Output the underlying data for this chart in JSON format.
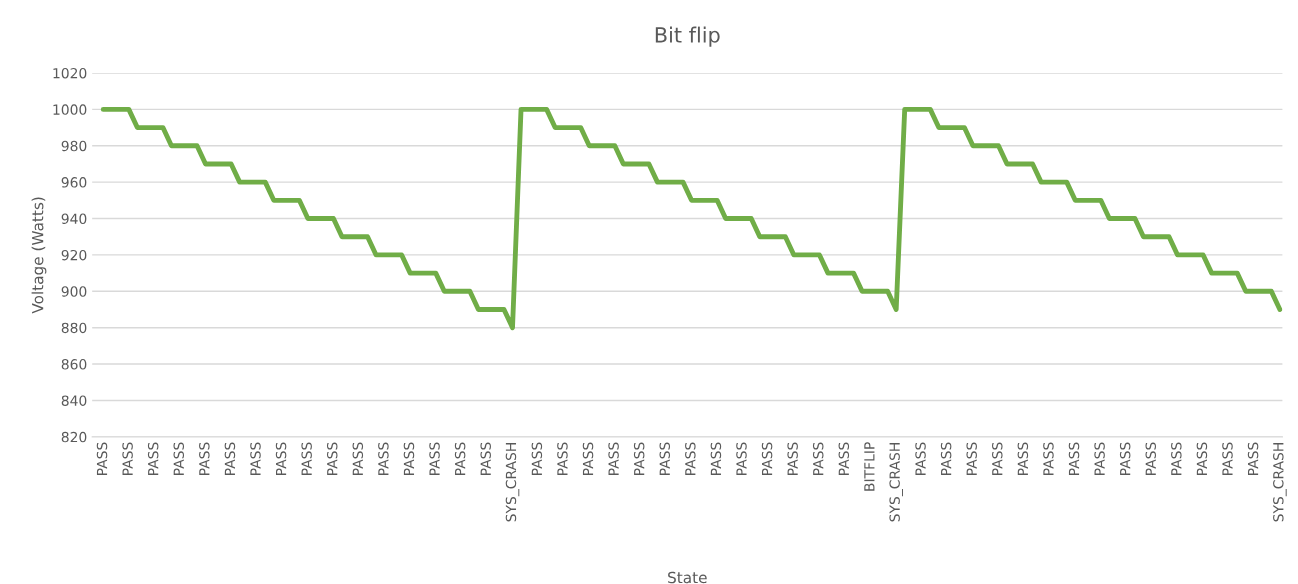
{
  "chart_data": {
    "type": "line",
    "title": "Bit flip",
    "xlabel": "State",
    "ylabel": "Voltage (Watts)",
    "categories": [
      "PASS",
      null,
      null,
      "PASS",
      null,
      null,
      "PASS",
      null,
      null,
      "PASS",
      null,
      null,
      "PASS",
      null,
      null,
      "PASS",
      null,
      null,
      "PASS",
      null,
      null,
      "PASS",
      null,
      null,
      "PASS",
      null,
      null,
      "PASS",
      null,
      null,
      "PASS",
      null,
      null,
      "PASS",
      null,
      null,
      "PASS",
      null,
      null,
      "PASS",
      null,
      null,
      "PASS",
      null,
      null,
      "PASS",
      null,
      null,
      "SYS_CRASH",
      null,
      null,
      "PASS",
      null,
      null,
      "PASS",
      null,
      null,
      "PASS",
      null,
      null,
      "PASS",
      null,
      null,
      "PASS",
      null,
      null,
      "PASS",
      null,
      null,
      "PASS",
      null,
      null,
      "PASS",
      null,
      null,
      "PASS",
      null,
      null,
      "PASS",
      null,
      null,
      "PASS",
      null,
      null,
      "PASS",
      null,
      null,
      "PASS",
      null,
      null,
      "BITFLIP",
      null,
      null,
      "SYS_CRASH",
      null,
      null,
      "PASS",
      null,
      null,
      "PASS",
      null,
      null,
      "PASS",
      null,
      null,
      "PASS",
      null,
      null,
      "PASS",
      null,
      null,
      "PASS",
      null,
      null,
      "PASS",
      null,
      null,
      "PASS",
      null,
      null,
      "PASS",
      null,
      null,
      "PASS",
      null,
      null,
      "PASS",
      null,
      null,
      "PASS",
      null,
      null,
      "PASS",
      null,
      null,
      "PASS",
      null,
      null,
      "SYS_CRASH"
    ],
    "series": [
      {
        "color": "#70ad47",
        "values": [
          1000,
          1000,
          1000,
          1000,
          990,
          990,
          990,
          990,
          980,
          980,
          980,
          980,
          970,
          970,
          970,
          970,
          960,
          960,
          960,
          960,
          950,
          950,
          950,
          950,
          940,
          940,
          940,
          940,
          930,
          930,
          930,
          930,
          920,
          920,
          920,
          920,
          910,
          910,
          910,
          910,
          900,
          900,
          900,
          900,
          890,
          890,
          890,
          890,
          880,
          1000,
          1000,
          1000,
          1000,
          990,
          990,
          990,
          990,
          980,
          980,
          980,
          980,
          970,
          970,
          970,
          970,
          960,
          960,
          960,
          960,
          950,
          950,
          950,
          950,
          940,
          940,
          940,
          940,
          930,
          930,
          930,
          930,
          920,
          920,
          920,
          920,
          910,
          910,
          910,
          910,
          900,
          900,
          900,
          900,
          890,
          1000,
          1000,
          1000,
          1000,
          990,
          990,
          990,
          990,
          980,
          980,
          980,
          980,
          970,
          970,
          970,
          970,
          960,
          960,
          960,
          960,
          950,
          950,
          950,
          950,
          940,
          940,
          940,
          940,
          930,
          930,
          930,
          930,
          920,
          920,
          920,
          920,
          910,
          910,
          910,
          910,
          900,
          900,
          900,
          900,
          890
        ]
      }
    ],
    "ylim": [
      820,
      1020
    ],
    "yticks": [
      820,
      840,
      860,
      880,
      900,
      920,
      940,
      960,
      980,
      1000,
      1020
    ],
    "grid": "y",
    "legend": false,
    "marker": "none",
    "line_style": "solid"
  }
}
